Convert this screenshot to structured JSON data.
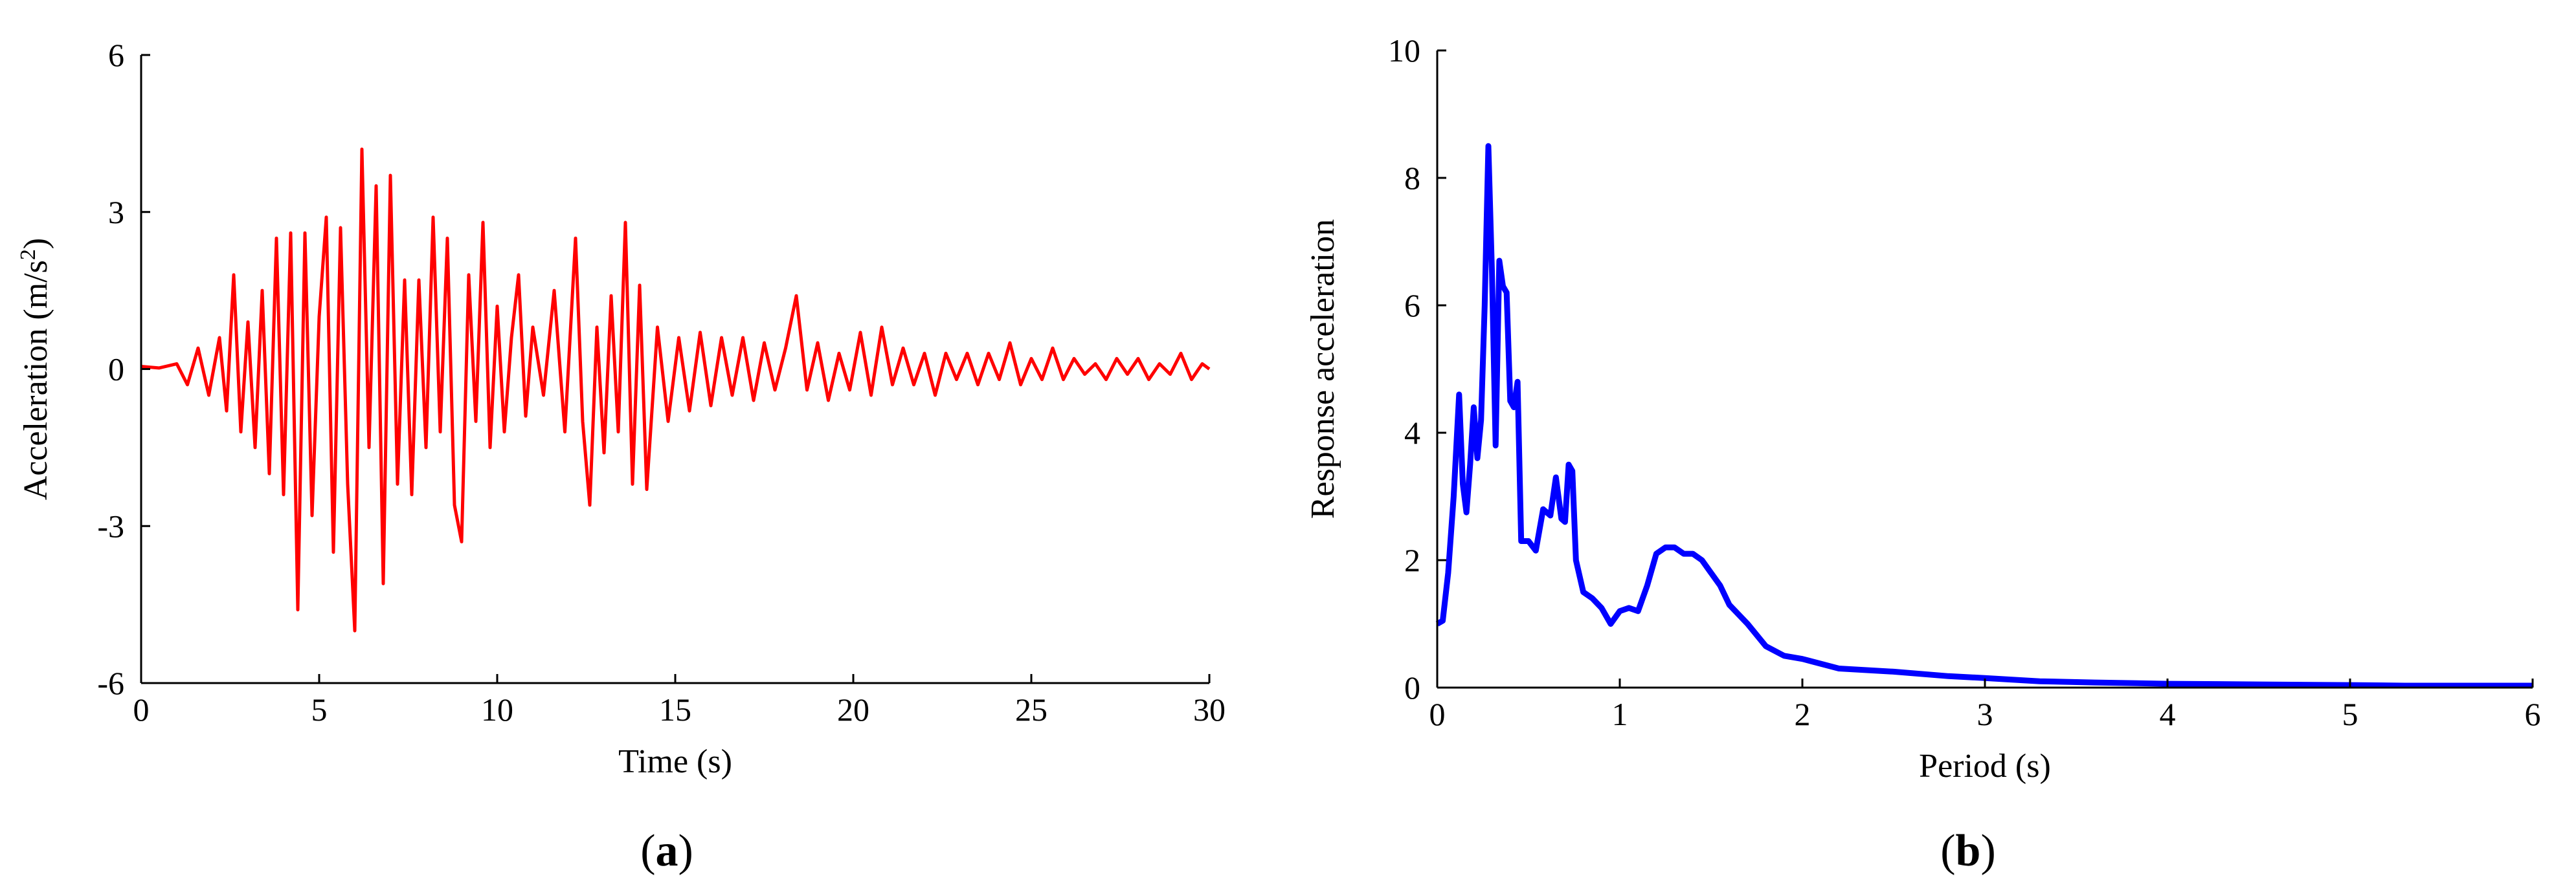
{
  "chart_data": [
    {
      "type": "line",
      "panel_label": "a",
      "xlabel": "Time (s)",
      "ylabel_main": "Acceleration (m/s",
      "ylabel_sup": "2",
      "ylabel_tail": ")",
      "xlim": [
        0,
        30
      ],
      "ylim": [
        -6,
        6
      ],
      "xticks": [
        0,
        5,
        10,
        15,
        20,
        25,
        30
      ],
      "yticks": [
        -6,
        -3,
        0,
        3,
        6
      ],
      "series": [
        {
          "color": "#ff0000",
          "x": [
            0,
            0.5,
            1,
            1.3,
            1.6,
            1.9,
            2.2,
            2.4,
            2.6,
            2.8,
            3.0,
            3.2,
            3.4,
            3.6,
            3.8,
            4.0,
            4.2,
            4.4,
            4.6,
            4.8,
            5.0,
            5.2,
            5.4,
            5.6,
            5.8,
            6.0,
            6.2,
            6.4,
            6.6,
            6.8,
            7.0,
            7.2,
            7.4,
            7.6,
            7.8,
            8.0,
            8.2,
            8.4,
            8.6,
            8.8,
            9.0,
            9.2,
            9.4,
            9.6,
            9.8,
            10.0,
            10.2,
            10.4,
            10.6,
            10.8,
            11.0,
            11.3,
            11.6,
            11.9,
            12.2,
            12.4,
            12.6,
            12.8,
            13.0,
            13.2,
            13.4,
            13.6,
            13.8,
            14.0,
            14.2,
            14.5,
            14.8,
            15.1,
            15.4,
            15.7,
            16.0,
            16.3,
            16.6,
            16.9,
            17.2,
            17.5,
            17.8,
            18.1,
            18.4,
            18.7,
            19.0,
            19.3,
            19.6,
            19.9,
            20.2,
            20.5,
            20.8,
            21.1,
            21.4,
            21.7,
            22.0,
            22.3,
            22.6,
            22.9,
            23.2,
            23.5,
            23.8,
            24.1,
            24.4,
            24.7,
            25.0,
            25.3,
            25.6,
            25.9,
            26.2,
            26.5,
            26.8,
            27.1,
            27.4,
            27.7,
            28.0,
            28.3,
            28.6,
            28.9,
            29.2,
            29.5,
            29.8,
            30.0
          ],
          "y": [
            0.05,
            0.02,
            0.1,
            -0.3,
            0.4,
            -0.5,
            0.6,
            -0.8,
            1.8,
            -1.2,
            0.9,
            -1.5,
            1.5,
            -2.0,
            2.5,
            -2.4,
            2.6,
            -4.6,
            2.6,
            -2.8,
            1.0,
            2.9,
            -3.5,
            2.7,
            -2.2,
            -5.0,
            4.2,
            -1.5,
            3.5,
            -4.1,
            3.7,
            -2.2,
            1.7,
            -2.4,
            1.7,
            -1.5,
            2.9,
            -1.2,
            2.5,
            -2.6,
            -3.3,
            1.8,
            -1.0,
            2.8,
            -1.5,
            1.2,
            -1.2,
            0.6,
            1.8,
            -0.9,
            0.8,
            -0.5,
            1.5,
            -1.2,
            2.5,
            -1.0,
            -2.6,
            0.8,
            -1.6,
            1.4,
            -1.2,
            2.8,
            -2.2,
            1.6,
            -2.3,
            0.8,
            -1.0,
            0.6,
            -0.8,
            0.7,
            -0.7,
            0.6,
            -0.5,
            0.6,
            -0.6,
            0.5,
            -0.4,
            0.4,
            1.4,
            -0.4,
            0.5,
            -0.6,
            0.3,
            -0.4,
            0.7,
            -0.5,
            0.8,
            -0.3,
            0.4,
            -0.3,
            0.3,
            -0.5,
            0.3,
            -0.2,
            0.3,
            -0.3,
            0.3,
            -0.2,
            0.5,
            -0.3,
            0.2,
            -0.2,
            0.4,
            -0.2,
            0.2,
            -0.1,
            0.1,
            -0.2,
            0.2,
            -0.1,
            0.2,
            -0.2,
            0.1,
            -0.1,
            0.3,
            -0.2,
            0.1,
            0.0
          ]
        }
      ]
    },
    {
      "type": "line",
      "panel_label": "b",
      "xlabel": "Period (s)",
      "ylabel": "Response acceleration",
      "xlim": [
        0,
        6
      ],
      "ylim": [
        0,
        10
      ],
      "xticks": [
        0,
        1,
        2,
        3,
        4,
        5,
        6
      ],
      "yticks": [
        0,
        2,
        4,
        6,
        8,
        10
      ],
      "series": [
        {
          "color": "#0000ff",
          "x": [
            0,
            0.03,
            0.06,
            0.09,
            0.12,
            0.14,
            0.16,
            0.18,
            0.2,
            0.22,
            0.24,
            0.26,
            0.28,
            0.3,
            0.32,
            0.34,
            0.36,
            0.38,
            0.4,
            0.42,
            0.44,
            0.46,
            0.5,
            0.54,
            0.58,
            0.62,
            0.65,
            0.68,
            0.7,
            0.72,
            0.74,
            0.76,
            0.8,
            0.85,
            0.9,
            0.95,
            1.0,
            1.05,
            1.1,
            1.15,
            1.2,
            1.25,
            1.3,
            1.35,
            1.4,
            1.45,
            1.5,
            1.55,
            1.6,
            1.7,
            1.8,
            1.9,
            2.0,
            2.2,
            2.5,
            2.8,
            3.0,
            3.3,
            3.6,
            4.0,
            4.5,
            5.0,
            5.3,
            5.6,
            6.0
          ],
          "y": [
            1.0,
            1.05,
            1.8,
            3.0,
            4.6,
            3.2,
            2.75,
            3.5,
            4.4,
            3.6,
            4.2,
            6.0,
            8.5,
            6.5,
            3.8,
            6.7,
            6.3,
            6.2,
            4.5,
            4.4,
            4.8,
            2.3,
            2.3,
            2.15,
            2.8,
            2.7,
            3.3,
            2.65,
            2.6,
            3.5,
            3.4,
            2.0,
            1.5,
            1.4,
            1.25,
            1.0,
            1.2,
            1.25,
            1.2,
            1.6,
            2.1,
            2.2,
            2.2,
            2.1,
            2.1,
            2.0,
            1.8,
            1.6,
            1.3,
            1.0,
            0.65,
            0.5,
            0.45,
            0.3,
            0.25,
            0.18,
            0.15,
            0.1,
            0.08,
            0.06,
            0.05,
            0.04,
            0.03,
            0.03,
            0.03
          ]
        }
      ]
    }
  ]
}
